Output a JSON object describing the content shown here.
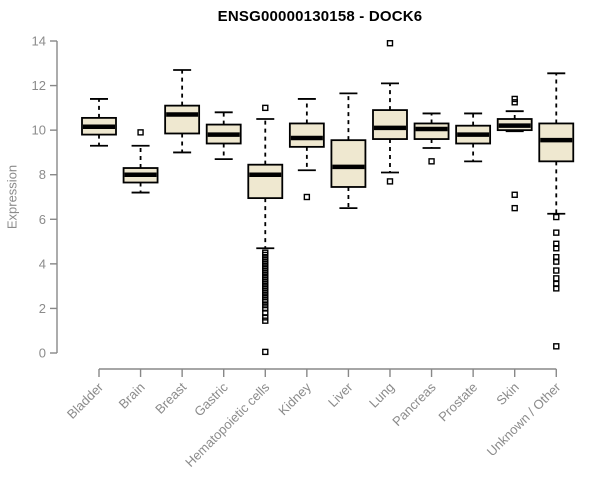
{
  "chart_data": {
    "type": "boxplot",
    "title": "ENSG00000130158 - DOCK6",
    "ylabel": "Expression",
    "xlabel": "",
    "ylim": [
      0,
      14
    ],
    "yticks": [
      0,
      2,
      4,
      6,
      8,
      10,
      12,
      14
    ],
    "grid": false,
    "legend": "none",
    "categories": [
      "Bladder",
      "Brain",
      "Breast",
      "Gastric",
      "Hematopoietic cells",
      "Kidney",
      "Liver",
      "Lung",
      "Pancreas",
      "Prostate",
      "Skin",
      "Unknown / Other"
    ],
    "series": [
      {
        "category": "Bladder",
        "whisker_low": 9.3,
        "q1": 9.8,
        "median": 10.15,
        "q3": 10.55,
        "whisker_high": 11.4,
        "outliers": []
      },
      {
        "category": "Brain",
        "whisker_low": 7.2,
        "q1": 7.65,
        "median": 8.0,
        "q3": 8.3,
        "whisker_high": 9.3,
        "outliers": [
          9.9
        ]
      },
      {
        "category": "Breast",
        "whisker_low": 9.0,
        "q1": 9.85,
        "median": 10.7,
        "q3": 11.1,
        "whisker_high": 12.7,
        "outliers": []
      },
      {
        "category": "Gastric",
        "whisker_low": 8.7,
        "q1": 9.4,
        "median": 9.8,
        "q3": 10.25,
        "whisker_high": 10.8,
        "outliers": []
      },
      {
        "category": "Hematopoietic cells",
        "whisker_low": 4.7,
        "q1": 6.95,
        "median": 8.0,
        "q3": 8.45,
        "whisker_high": 10.5,
        "outliers": [
          11.0,
          4.5,
          4.4,
          4.3,
          4.2,
          4.1,
          4.0,
          3.9,
          3.8,
          3.7,
          3.6,
          3.5,
          3.4,
          3.3,
          3.2,
          3.1,
          3.0,
          2.9,
          2.8,
          2.7,
          2.6,
          2.5,
          2.4,
          2.3,
          2.15,
          2.0,
          1.8,
          1.6,
          1.45,
          0.05
        ]
      },
      {
        "category": "Kidney",
        "whisker_low": 8.2,
        "q1": 9.25,
        "median": 9.65,
        "q3": 10.3,
        "whisker_high": 11.4,
        "outliers": [
          7.0
        ]
      },
      {
        "category": "Liver",
        "whisker_low": 6.5,
        "q1": 7.45,
        "median": 8.35,
        "q3": 9.55,
        "whisker_high": 11.65,
        "outliers": []
      },
      {
        "category": "Lung",
        "whisker_low": 8.1,
        "q1": 9.6,
        "median": 10.1,
        "q3": 10.9,
        "whisker_high": 12.1,
        "outliers": [
          13.9,
          7.7
        ]
      },
      {
        "category": "Pancreas",
        "whisker_low": 9.2,
        "q1": 9.6,
        "median": 10.05,
        "q3": 10.3,
        "whisker_high": 10.75,
        "outliers": [
          8.6
        ]
      },
      {
        "category": "Prostate",
        "whisker_low": 8.6,
        "q1": 9.4,
        "median": 9.8,
        "q3": 10.2,
        "whisker_high": 10.75,
        "outliers": []
      },
      {
        "category": "Skin",
        "whisker_low": 9.95,
        "q1": 10.0,
        "median": 10.2,
        "q3": 10.5,
        "whisker_high": 10.85,
        "outliers": [
          11.4,
          11.25,
          7.1,
          6.5
        ]
      },
      {
        "category": "Unknown / Other",
        "whisker_low": 6.25,
        "q1": 8.6,
        "median": 9.55,
        "q3": 10.3,
        "whisker_high": 12.55,
        "outliers": [
          6.1,
          5.4,
          4.9,
          4.7,
          4.3,
          4.1,
          3.7,
          3.35,
          3.1,
          2.9,
          0.3
        ]
      }
    ],
    "colors": {
      "background": "#ffffff",
      "box_fill": "#efe8d0",
      "box_border": "#000000",
      "median": "#000000",
      "whisker": "#000000",
      "outlier": "#000000",
      "axis": "#888888",
      "tick_label": "#8b8b8b",
      "title": "#000000"
    }
  }
}
